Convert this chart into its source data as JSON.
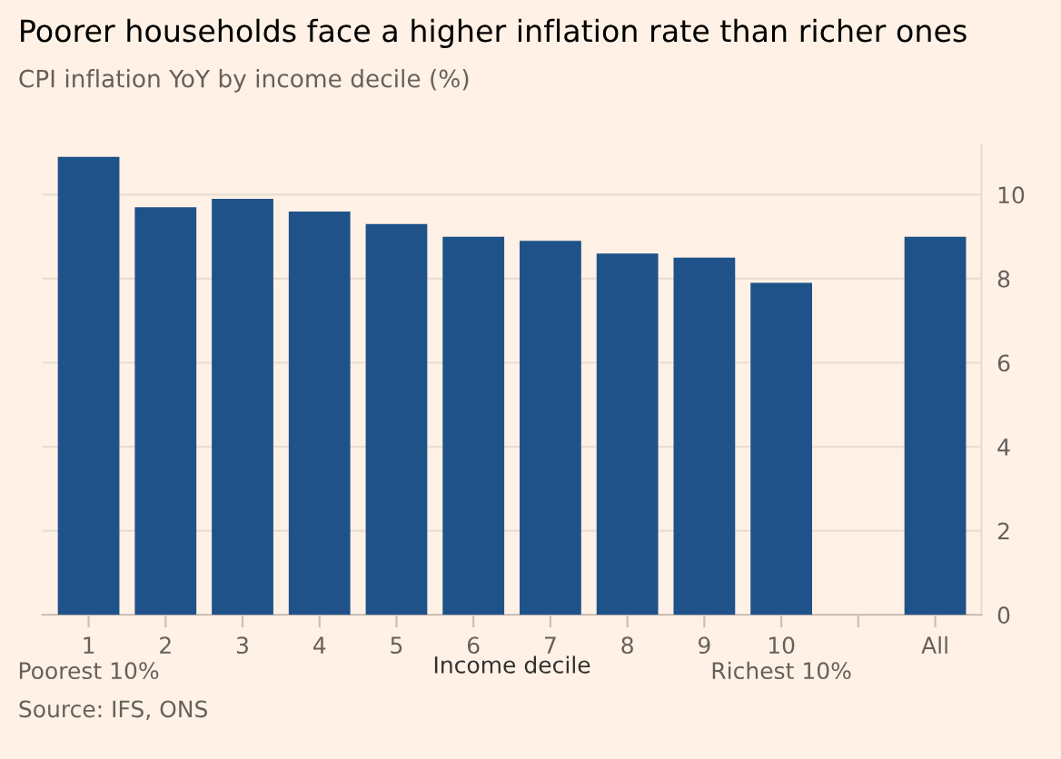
{
  "chart_data": {
    "type": "bar",
    "title": "Poorer households face a higher inflation rate than richer ones",
    "subtitle": "CPI inflation YoY by income decile (%)",
    "xlabel": "Income decile",
    "categories": [
      "1\nPoorest 10%",
      "2",
      "3",
      "4",
      "5",
      "6",
      "7",
      "8",
      "9",
      "10\nRichest 10%",
      null,
      "All"
    ],
    "values": [
      10.9,
      9.7,
      9.9,
      9.6,
      9.3,
      9.0,
      8.9,
      8.6,
      8.5,
      7.9,
      null,
      9.0
    ],
    "color": "#1f5289",
    "yticks": [
      0,
      2,
      4,
      6,
      8,
      10
    ],
    "ylim": [
      0,
      11.2
    ],
    "grid": "y",
    "annotations": [
      "Source: IFS, ONS"
    ]
  }
}
